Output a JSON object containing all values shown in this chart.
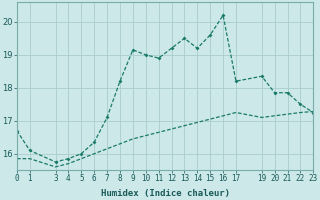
{
  "xlabel": "Humidex (Indice chaleur)",
  "background_color": "#cce8e8",
  "grid_color": "#aacccc",
  "line_color": "#1a7a6a",
  "x_line1": [
    0,
    1,
    3,
    4,
    5,
    6,
    7,
    8,
    9,
    10,
    11,
    12,
    13,
    14,
    15,
    16,
    17,
    19,
    20,
    21,
    22,
    23
  ],
  "y_line1": [
    16.7,
    16.1,
    15.75,
    15.85,
    16.0,
    16.35,
    17.1,
    18.2,
    19.15,
    19.0,
    18.9,
    19.2,
    19.5,
    19.2,
    19.6,
    20.2,
    18.2,
    18.35,
    17.85,
    17.85,
    17.5,
    17.25
  ],
  "x_line2": [
    0,
    1,
    3,
    4,
    5,
    6,
    7,
    8,
    9,
    10,
    11,
    12,
    13,
    14,
    15,
    16,
    17,
    19,
    20,
    21,
    22,
    23
  ],
  "y_line2": [
    15.85,
    15.85,
    15.6,
    15.7,
    15.85,
    16.0,
    16.15,
    16.3,
    16.45,
    16.55,
    16.65,
    16.75,
    16.85,
    16.95,
    17.05,
    17.15,
    17.25,
    17.1,
    17.15,
    17.2,
    17.25,
    17.28
  ],
  "xlim": [
    0,
    23
  ],
  "ylim": [
    15.5,
    20.6
  ],
  "yticks": [
    16,
    17,
    18,
    19,
    20
  ],
  "xticks": [
    0,
    1,
    3,
    4,
    5,
    6,
    7,
    8,
    9,
    10,
    11,
    12,
    13,
    14,
    15,
    16,
    17,
    19,
    20,
    21,
    22,
    23
  ],
  "xlabel_fontsize": 6.5,
  "tick_fontsize": 5.5
}
